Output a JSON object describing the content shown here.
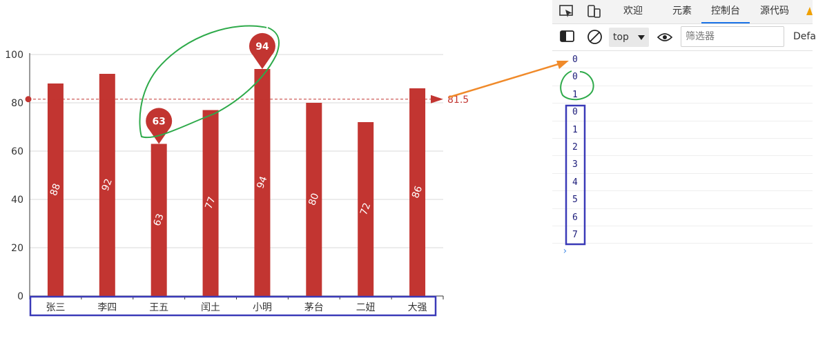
{
  "chart_data": {
    "type": "bar",
    "categories": [
      "张三",
      "李四",
      "王五",
      "闰土",
      "小明",
      "茅台",
      "二妞",
      "大强"
    ],
    "values": [
      88,
      92,
      63,
      77,
      94,
      80,
      72,
      86
    ],
    "ylim": [
      0,
      100
    ],
    "yticks": [
      0,
      20,
      40,
      60,
      80,
      100
    ],
    "markpoints": [
      {
        "category": "王五",
        "value": 63,
        "label": "63"
      },
      {
        "category": "小明",
        "value": 94,
        "label": "94"
      }
    ],
    "markline": {
      "value": 81.5,
      "label": "81.5"
    },
    "grid": true,
    "bar_color": "#c23531"
  },
  "devtools": {
    "tabs": [
      {
        "label": "欢迎",
        "active": false
      },
      {
        "label": "元素",
        "active": false
      },
      {
        "label": "控制台",
        "active": true
      },
      {
        "label": "源代码",
        "active": false
      }
    ],
    "toolbar": {
      "context": "top",
      "filter_placeholder": "筛选器",
      "levels_label": "Defa"
    },
    "console_lines": [
      "0",
      "0",
      "1",
      "0",
      "1",
      "2",
      "3",
      "4",
      "5",
      "6",
      "7"
    ],
    "prompt_symbol": "›",
    "accent_color": "#1a73e8"
  }
}
